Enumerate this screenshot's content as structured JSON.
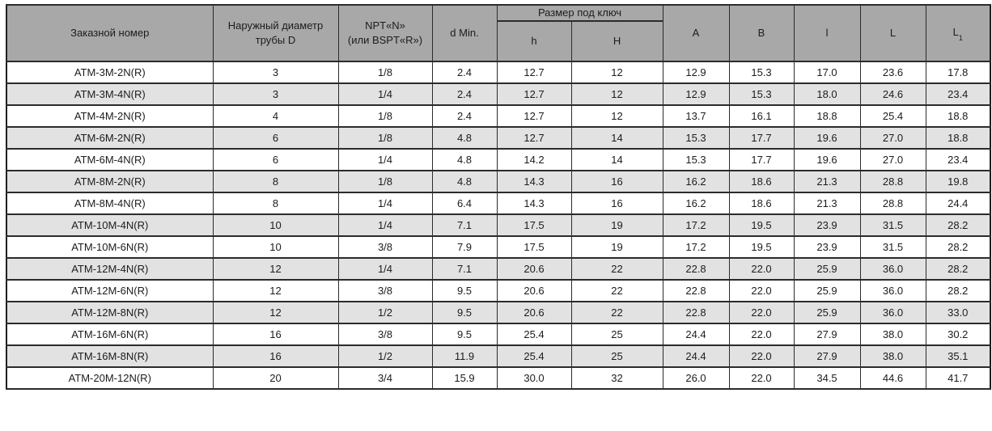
{
  "table": {
    "header": {
      "order_number": "Заказной номер",
      "outer_diameter_line1": "Наружный диаметр",
      "outer_diameter_line2": "трубы D",
      "thread_line1": "NPT«N»",
      "thread_line2": "(или BSPT«R»)",
      "d_min": "d Min.",
      "wrench_size_group": "Размер под ключ",
      "h_small": "h",
      "h_big": "H",
      "a": "A",
      "b": "B",
      "l_small": "l",
      "l_big": "L",
      "l1_base": "L",
      "l1_sub": "1"
    },
    "rows": [
      [
        "ATM-3M-2N(R)",
        "3",
        "1/8",
        "2.4",
        "12.7",
        "12",
        "12.9",
        "15.3",
        "17.0",
        "23.6",
        "17.8"
      ],
      [
        "ATM-3M-4N(R)",
        "3",
        "1/4",
        "2.4",
        "12.7",
        "12",
        "12.9",
        "15.3",
        "18.0",
        "24.6",
        "23.4"
      ],
      [
        "ATM-4M-2N(R)",
        "4",
        "1/8",
        "2.4",
        "12.7",
        "12",
        "13.7",
        "16.1",
        "18.8",
        "25.4",
        "18.8"
      ],
      [
        "ATM-6M-2N(R)",
        "6",
        "1/8",
        "4.8",
        "12.7",
        "14",
        "15.3",
        "17.7",
        "19.6",
        "27.0",
        "18.8"
      ],
      [
        "ATM-6M-4N(R)",
        "6",
        "1/4",
        "4.8",
        "14.2",
        "14",
        "15.3",
        "17.7",
        "19.6",
        "27.0",
        "23.4"
      ],
      [
        "ATM-8M-2N(R)",
        "8",
        "1/8",
        "4.8",
        "14.3",
        "16",
        "16.2",
        "18.6",
        "21.3",
        "28.8",
        "19.8"
      ],
      [
        "ATM-8M-4N(R)",
        "8",
        "1/4",
        "6.4",
        "14.3",
        "16",
        "16.2",
        "18.6",
        "21.3",
        "28.8",
        "24.4"
      ],
      [
        "ATM-10M-4N(R)",
        "10",
        "1/4",
        "7.1",
        "17.5",
        "19",
        "17.2",
        "19.5",
        "23.9",
        "31.5",
        "28.2"
      ],
      [
        "ATM-10M-6N(R)",
        "10",
        "3/8",
        "7.9",
        "17.5",
        "19",
        "17.2",
        "19.5",
        "23.9",
        "31.5",
        "28.2"
      ],
      [
        "ATM-12M-4N(R)",
        "12",
        "1/4",
        "7.1",
        "20.6",
        "22",
        "22.8",
        "22.0",
        "25.9",
        "36.0",
        "28.2"
      ],
      [
        "ATM-12M-6N(R)",
        "12",
        "3/8",
        "9.5",
        "20.6",
        "22",
        "22.8",
        "22.0",
        "25.9",
        "36.0",
        "28.2"
      ],
      [
        "ATM-12M-8N(R)",
        "12",
        "1/2",
        "9.5",
        "20.6",
        "22",
        "22.8",
        "22.0",
        "25.9",
        "36.0",
        "33.0"
      ],
      [
        "ATM-16M-6N(R)",
        "16",
        "3/8",
        "9.5",
        "25.4",
        "25",
        "24.4",
        "22.0",
        "27.9",
        "38.0",
        "30.2"
      ],
      [
        "ATM-16M-8N(R)",
        "16",
        "1/2",
        "11.9",
        "25.4",
        "25",
        "24.4",
        "22.0",
        "27.9",
        "38.0",
        "35.1"
      ],
      [
        "ATM-20M-12N(R)",
        "20",
        "3/4",
        "15.9",
        "30.0",
        "32",
        "26.0",
        "22.0",
        "34.5",
        "44.6",
        "41.7"
      ]
    ]
  },
  "colors": {
    "header_bg": "#a8a8a8",
    "stripe_bg": "#e2e2e2",
    "row_bg": "#ffffff",
    "border": "#2b2b2b",
    "text": "#1c1c1c"
  }
}
